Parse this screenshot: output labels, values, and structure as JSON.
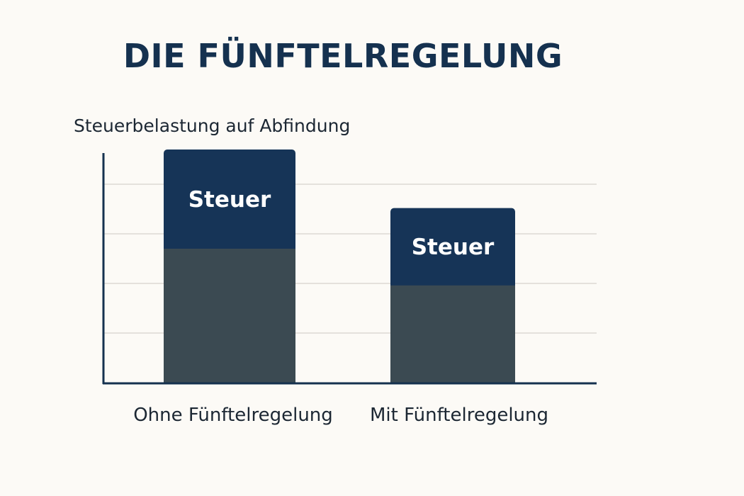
{
  "chart_data": {
    "type": "bar",
    "title": "DIE FÜNFTELREGELUNG",
    "xlabel": "",
    "ylabel": "Steuerbelastung auf Abfindung",
    "categories": [
      "Ohne Fünftelregelung",
      "Mit Fünftelregelung"
    ],
    "ylim": [
      0,
      5
    ],
    "grid": true,
    "series": [
      {
        "name": "",
        "values": [
          2.7,
          1.96
        ]
      },
      {
        "name": "Steuer",
        "values": [
          2.0,
          1.56
        ]
      }
    ],
    "segment_labels": [
      "Steuer",
      "Steuer"
    ]
  },
  "colors": {
    "background": "#fcfaf6",
    "title": "#15314f",
    "axis": "#15314f",
    "grid": "#e4e1dc",
    "base_segment": "#3b4a52",
    "tax_segment": "#163457",
    "segment_label": "#ffffff",
    "category_label": "#1c2733"
  }
}
